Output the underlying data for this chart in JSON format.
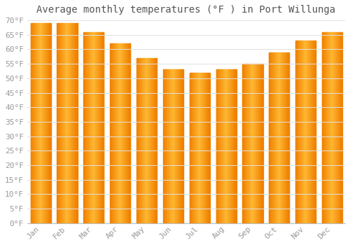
{
  "title": "Average monthly temperatures (°F ) in Port Willunga",
  "months": [
    "Jan",
    "Feb",
    "Mar",
    "Apr",
    "May",
    "Jun",
    "Jul",
    "Aug",
    "Sep",
    "Oct",
    "Nov",
    "Dec"
  ],
  "values": [
    69,
    69,
    66,
    62,
    57,
    53,
    52,
    53,
    55,
    59,
    63,
    66
  ],
  "bar_color_center": "#FFB833",
  "bar_color_edge": "#F08000",
  "background_color": "#FFFFFF",
  "grid_color": "#E0E0E0",
  "ylim": [
    0,
    70
  ],
  "ytick_step": 5,
  "title_fontsize": 10,
  "tick_fontsize": 8,
  "font_family": "monospace",
  "tick_color": "#999999",
  "title_color": "#555555"
}
